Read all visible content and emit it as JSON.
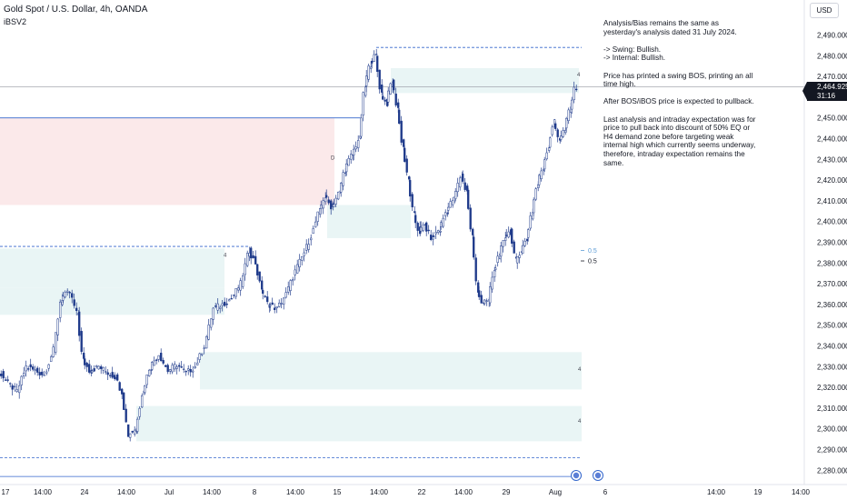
{
  "symbol": {
    "title": "Gold Spot / U.S. Dollar, 4h, OANDA",
    "indicator": "iBSV2",
    "currency_button": "USD"
  },
  "colors": {
    "candle": "#1e3a8a",
    "supply_zone": "#fbe9ea",
    "demand_zone": "#e9f5f5",
    "bos_line": "#3366cc",
    "price_line": "#131722"
  },
  "analysis_note": [
    "Analysis/Bias remains the same as yesterday's analysis dated 31 July 2024.",
    "-> Swing:  Bullish.\n-> Internal:  Bullish.",
    "Price has printed a swing BOS, printing an all time high.",
    "After BOS/iBOS price is expected to pullback.",
    "Last analysis and intraday expectation was for price to pull back into discount of 50% EQ or H4 demand zone before targeting weak internal high which currently seems underway, therefore, intraday expectation remains the same."
  ],
  "price_tag": {
    "price": "2,464.925",
    "countdown": "31:16"
  },
  "chart_data": {
    "type": "candlestick",
    "title": "Gold Spot / U.S. Dollar, 4h, OANDA",
    "y_axis": {
      "range": [
        2276,
        2502
      ],
      "ticks": [
        2490,
        2480,
        2470,
        2460,
        2450,
        2440,
        2430,
        2420,
        2410,
        2400,
        2390,
        2380,
        2370,
        2360,
        2350,
        2340,
        2330,
        2320,
        2310,
        2300,
        2290,
        2280
      ],
      "tick_labels": [
        "2,490.000",
        "2,480.000",
        "2,470.000",
        "2,460.000",
        "2,450.000",
        "2,440.000",
        "2,430.000",
        "2,420.000",
        "2,410.000",
        "2,400.000",
        "2,390.000",
        "2,380.000",
        "2,370.000",
        "2,360.000",
        "2,350.000",
        "2,340.000",
        "2,330.000",
        "2,320.000",
        "2,310.000",
        "2,300.000",
        "2,290.000",
        "2,280.000"
      ]
    },
    "x_axis": {
      "labels": [
        "17",
        "14:00",
        "24",
        "14:00",
        "Jul",
        "14:00",
        "8",
        "14:00",
        "15",
        "14:00",
        "22",
        "14:00",
        "29",
        "Aug",
        "6",
        "14:00",
        "19",
        "14:00"
      ]
    },
    "current_price": 2464.925,
    "price_path": [
      [
        0,
        2328
      ],
      [
        10,
        2322
      ],
      [
        20,
        2318
      ],
      [
        30,
        2330
      ],
      [
        40,
        2328
      ],
      [
        50,
        2326
      ],
      [
        60,
        2338
      ],
      [
        68,
        2363
      ],
      [
        78,
        2366
      ],
      [
        86,
        2355
      ],
      [
        92,
        2333
      ],
      [
        100,
        2328
      ],
      [
        110,
        2330
      ],
      [
        120,
        2327
      ],
      [
        128,
        2325
      ],
      [
        135,
        2318
      ],
      [
        142,
        2297
      ],
      [
        150,
        2300
      ],
      [
        158,
        2318
      ],
      [
        166,
        2330
      ],
      [
        176,
        2336
      ],
      [
        186,
        2328
      ],
      [
        196,
        2331
      ],
      [
        206,
        2327
      ],
      [
        216,
        2330
      ],
      [
        226,
        2340
      ],
      [
        236,
        2358
      ],
      [
        246,
        2360
      ],
      [
        256,
        2363
      ],
      [
        266,
        2370
      ],
      [
        275,
        2386
      ],
      [
        282,
        2380
      ],
      [
        288,
        2368
      ],
      [
        296,
        2360
      ],
      [
        306,
        2358
      ],
      [
        316,
        2365
      ],
      [
        326,
        2376
      ],
      [
        336,
        2385
      ],
      [
        346,
        2396
      ],
      [
        352,
        2405
      ],
      [
        358,
        2412
      ],
      [
        366,
        2407
      ],
      [
        374,
        2414
      ],
      [
        380,
        2425
      ],
      [
        388,
        2432
      ],
      [
        396,
        2440
      ],
      [
        402,
        2465
      ],
      [
        408,
        2476
      ],
      [
        414,
        2480
      ],
      [
        420,
        2462
      ],
      [
        426,
        2457
      ],
      [
        432,
        2468
      ],
      [
        438,
        2455
      ],
      [
        444,
        2436
      ],
      [
        450,
        2420
      ],
      [
        456,
        2403
      ],
      [
        462,
        2395
      ],
      [
        468,
        2398
      ],
      [
        476,
        2392
      ],
      [
        484,
        2396
      ],
      [
        492,
        2405
      ],
      [
        500,
        2411
      ],
      [
        508,
        2422
      ],
      [
        514,
        2415
      ],
      [
        520,
        2393
      ],
      [
        526,
        2367
      ],
      [
        532,
        2360
      ],
      [
        538,
        2362
      ],
      [
        544,
        2376
      ],
      [
        550,
        2383
      ],
      [
        556,
        2393
      ],
      [
        562,
        2395
      ],
      [
        568,
        2381
      ],
      [
        574,
        2386
      ],
      [
        580,
        2391
      ],
      [
        586,
        2405
      ],
      [
        592,
        2418
      ],
      [
        598,
        2426
      ],
      [
        604,
        2436
      ],
      [
        610,
        2448
      ],
      [
        616,
        2440
      ],
      [
        622,
        2444
      ],
      [
        628,
        2455
      ],
      [
        634,
        2465
      ]
    ],
    "zones": [
      {
        "type": "supply",
        "x_start": 0,
        "x_end": 368,
        "top": 2450,
        "bottom": 2408
      },
      {
        "type": "demand",
        "x_start": 360,
        "x_end": 452,
        "top": 2408,
        "bottom": 2392
      },
      {
        "type": "demand",
        "x_start": 430,
        "x_end": 637,
        "top": 2474,
        "bottom": 2462
      },
      {
        "type": "demand",
        "x_start": 0,
        "x_end": 247,
        "top": 2387,
        "bottom": 2368
      },
      {
        "type": "demand",
        "x_start": 0,
        "x_end": 247,
        "top": 2368,
        "bottom": 2355
      },
      {
        "type": "demand",
        "x_start": 220,
        "x_end": 640,
        "top": 2337,
        "bottom": 2319
      },
      {
        "type": "demand",
        "x_start": 150,
        "x_end": 640,
        "top": 2311,
        "bottom": 2294
      }
    ],
    "lines": [
      {
        "type": "swing-high",
        "price": 2484,
        "x_start": 414,
        "x_end": 640,
        "style": "dashed"
      },
      {
        "type": "bos",
        "price": 2450,
        "x_start": 0,
        "x_end": 396,
        "style": "solid"
      },
      {
        "type": "internal-high",
        "price": 2388,
        "x_start": 0,
        "x_end": 275,
        "style": "dashed"
      },
      {
        "type": "swing-low",
        "price": 2286,
        "x_start": 0,
        "x_end": 640,
        "style": "dashed"
      },
      {
        "type": "bottom-line",
        "price": 2277,
        "x_start": 0,
        "x_end": 640,
        "style": "solid"
      }
    ],
    "fib_levels": [
      {
        "label": "0.5",
        "price": 2386,
        "color": "#5b9bd5"
      },
      {
        "label": "0.5",
        "price": 2381,
        "color": "#131722"
      }
    ],
    "zone_labels": [
      {
        "text": "D",
        "x": 364,
        "price": 2430
      },
      {
        "text": "4",
        "x": 246,
        "price": 2383
      },
      {
        "text": "4",
        "x": 635,
        "price": 2470
      },
      {
        "text": "4",
        "x": 636,
        "price": 2328
      },
      {
        "text": "4",
        "x": 636,
        "price": 2303
      }
    ]
  }
}
